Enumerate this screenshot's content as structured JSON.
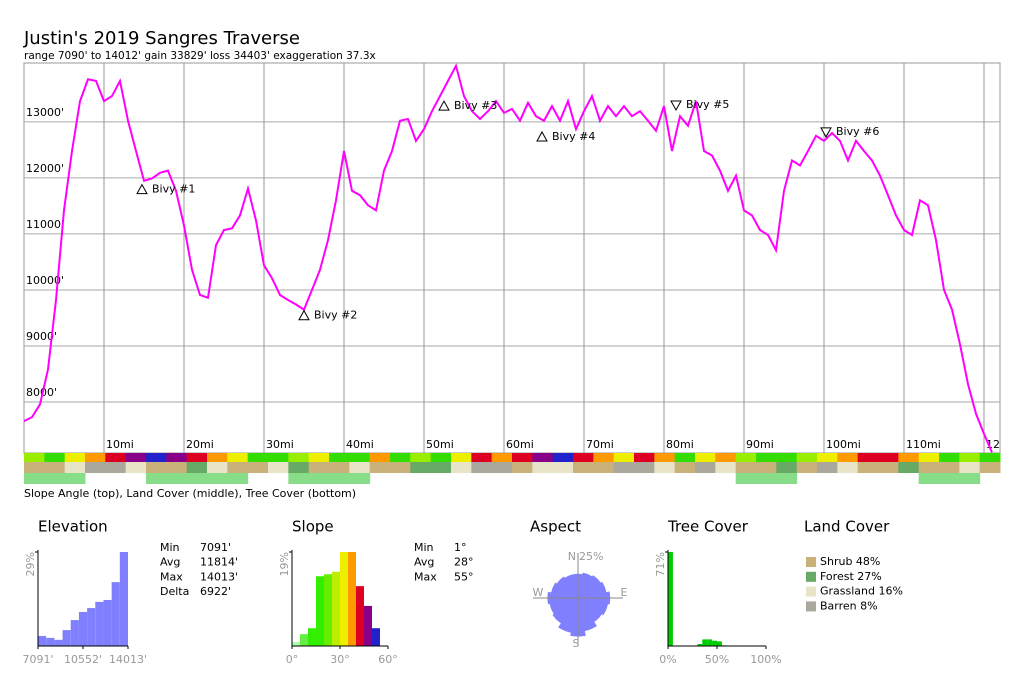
{
  "header": {
    "title": "Justin's 2019 Sangres Traverse",
    "subtitle": "range 7090' to 14012'  gain 33829'  loss 34403'  exaggeration 37.3x"
  },
  "chart_data": [
    {
      "type": "line",
      "color": "#ff00ff",
      "grid": true,
      "xlim": [
        0,
        122
      ],
      "ylim": [
        7090,
        14050
      ],
      "xticks": [
        {
          "value": 10,
          "label": "10mi"
        },
        {
          "value": 20,
          "label": "20mi"
        },
        {
          "value": 30,
          "label": "30mi"
        },
        {
          "value": 40,
          "label": "40mi"
        },
        {
          "value": 50,
          "label": "50mi"
        },
        {
          "value": 60,
          "label": "60mi"
        },
        {
          "value": 70,
          "label": "70mi"
        },
        {
          "value": 80,
          "label": "80mi"
        },
        {
          "value": 90,
          "label": "90mi"
        },
        {
          "value": 100,
          "label": "100mi"
        },
        {
          "value": 110,
          "label": "110mi"
        },
        {
          "value": 120,
          "label": "12"
        }
      ],
      "yticks": [
        {
          "value": 8000,
          "label": "8000'"
        },
        {
          "value": 9000,
          "label": "9000'"
        },
        {
          "value": 10000,
          "label": "10000'"
        },
        {
          "value": 11000,
          "label": "11000'"
        },
        {
          "value": 12000,
          "label": "12000'"
        },
        {
          "value": 13000,
          "label": "13000'"
        }
      ],
      "x": [
        0,
        1,
        2,
        3,
        4,
        5,
        6,
        7,
        8,
        9,
        10,
        11,
        12,
        13,
        14,
        15,
        16,
        17,
        18,
        19,
        20,
        21,
        22,
        23,
        24,
        25,
        26,
        27,
        28,
        29,
        30,
        31,
        32,
        33,
        34,
        35,
        36,
        37,
        38,
        39,
        40,
        41,
        42,
        43,
        44,
        45,
        46,
        47,
        48,
        49,
        50,
        51,
        52,
        53,
        54,
        55,
        56,
        57,
        58,
        59,
        60,
        61,
        62,
        63,
        64,
        65,
        66,
        67,
        68,
        69,
        70,
        71,
        72,
        73,
        74,
        75,
        76,
        77,
        78,
        79,
        80,
        81,
        82,
        83,
        84,
        85,
        86,
        87,
        88,
        89,
        90,
        91,
        92,
        93,
        94,
        95,
        96,
        97,
        98,
        99,
        100,
        101,
        102,
        103,
        104,
        105,
        106,
        107,
        108,
        109,
        110,
        111,
        112,
        113,
        114,
        115,
        116,
        117,
        118,
        119,
        120,
        121
      ],
      "values": [
        7660,
        7730,
        7960,
        8580,
        9820,
        11420,
        12480,
        13370,
        13760,
        13730,
        13370,
        13460,
        13730,
        13020,
        12480,
        11950,
        11990,
        12090,
        12130,
        11770,
        11150,
        10360,
        9910,
        9860,
        10800,
        11070,
        11100,
        11330,
        11810,
        11240,
        10440,
        10210,
        9910,
        9820,
        9740,
        9650,
        10000,
        10360,
        10890,
        11600,
        12480,
        11770,
        11690,
        11510,
        11420,
        12130,
        12480,
        13020,
        13050,
        12660,
        12870,
        13190,
        13460,
        13730,
        14000,
        13460,
        13190,
        13050,
        13190,
        13370,
        13160,
        13230,
        13020,
        13340,
        13100,
        13020,
        13280,
        13020,
        13370,
        12870,
        13190,
        13460,
        13020,
        13280,
        13100,
        13280,
        13100,
        13190,
        13020,
        12840,
        13280,
        12480,
        13100,
        12930,
        13370,
        12480,
        12400,
        12130,
        11770,
        12040,
        11420,
        11330,
        11070,
        10980,
        10710,
        11770,
        12310,
        12220,
        12480,
        12750,
        12660,
        12800,
        12660,
        12310,
        12660,
        12480,
        12310,
        12040,
        11690,
        11330,
        11070,
        10980,
        11600,
        11510,
        10890,
        10000,
        9650,
        9030,
        8320,
        7790,
        7430,
        7100
      ],
      "annotations": [
        {
          "label": "Bivy #1",
          "x": 14.75,
          "y": 11790,
          "marker": "up"
        },
        {
          "label": "Bivy #2",
          "x": 35,
          "y": 9540,
          "marker": "up"
        },
        {
          "label": "Bivy #3",
          "x": 52.5,
          "y": 13280,
          "marker": "up"
        },
        {
          "label": "Bivy #4",
          "x": 64.75,
          "y": 12730,
          "marker": "up"
        },
        {
          "label": "Bivy #5",
          "x": 81.5,
          "y": 13300,
          "marker": "down"
        },
        {
          "label": "Bivy #6",
          "x": 100.25,
          "y": 12820,
          "marker": "down"
        }
      ]
    },
    {
      "type": "band",
      "caption": "Slope Angle (top), Land Cover (middle), Tree Cover (bottom)",
      "rows": [
        {
          "colors": [
            "#99ee00",
            "#33dd00",
            "#eeee00",
            "#ff9900",
            "#dd0022",
            "#880088",
            "#2222cc",
            "#880088",
            "#dd0022",
            "#ff9900",
            "#eeee00",
            "#33dd00",
            "#33dd00",
            "#99ee00",
            "#eeee00",
            "#33dd00",
            "#33dd00",
            "#ff9900",
            "#33dd00",
            "#99ee00",
            "#33dd00",
            "#eeee00",
            "#dd0022",
            "#ff9900",
            "#dd0022",
            "#880088",
            "#2222cc",
            "#dd0022",
            "#ff9900",
            "#eeee00",
            "#dd0022",
            "#ff9900",
            "#33dd00",
            "#eeee00",
            "#ff9900",
            "#99ee00",
            "#33dd00",
            "#33dd00",
            "#99ee00",
            "#eeee00",
            "#ff9900",
            "#dd0022",
            "#dd0022",
            "#ff9900",
            "#eeee00",
            "#33dd00",
            "#99ee00",
            "#33dd00"
          ]
        },
        {
          "colors": [
            "#c8b27a",
            "#c8b27a",
            "#e8e4c8",
            "#aaa79c",
            "#aaa79c",
            "#e8e4c8",
            "#c8b27a",
            "#c8b27a",
            "#66aa66",
            "#e8e4c8",
            "#c8b27a",
            "#c8b27a",
            "#e8e4c8",
            "#66aa66",
            "#c8b27a",
            "#c8b27a",
            "#e8e4c8",
            "#c8b27a",
            "#c8b27a",
            "#66aa66",
            "#66aa66",
            "#e8e4c8",
            "#aaa79c",
            "#aaa79c",
            "#c8b27a",
            "#e8e4c8",
            "#e8e4c8",
            "#c8b27a",
            "#c8b27a",
            "#aaa79c",
            "#aaa79c",
            "#e8e4c8",
            "#c8b27a",
            "#aaa79c",
            "#e8e4c8",
            "#c8b27a",
            "#c8b27a",
            "#66aa66",
            "#c8b27a",
            "#aaa79c",
            "#e8e4c8",
            "#c8b27a",
            "#c8b27a",
            "#66aa66",
            "#c8b27a",
            "#c8b27a",
            "#e8e4c8",
            "#c8b27a"
          ]
        },
        {
          "colors": [
            "#88dd88",
            "#88dd88",
            "#88dd88",
            null,
            null,
            null,
            "#88dd88",
            "#88dd88",
            "#88dd88",
            "#88dd88",
            "#88dd88",
            null,
            null,
            "#88dd88",
            "#88dd88",
            "#88dd88",
            "#88dd88",
            null,
            null,
            null,
            null,
            null,
            null,
            null,
            null,
            null,
            null,
            null,
            null,
            null,
            null,
            null,
            null,
            null,
            null,
            "#88dd88",
            "#88dd88",
            "#88dd88",
            null,
            null,
            null,
            null,
            null,
            null,
            "#88dd88",
            "#88dd88",
            "#88dd88",
            null
          ]
        }
      ]
    },
    {
      "type": "histogram",
      "title": "Elevation",
      "color": "#8080ff",
      "xlim": [
        7091,
        14013
      ],
      "ylim": [
        0,
        29
      ],
      "bins": [
        7091,
        7720,
        8350,
        8979,
        9608,
        10238,
        10867,
        11496,
        12125,
        12755,
        13384,
        14013
      ],
      "values": [
        3.1,
        2.5,
        1.9,
        4.9,
        8.0,
        10.5,
        11.7,
        13.6,
        14.2,
        19.7,
        29
      ],
      "xticks": [
        {
          "value": 7091,
          "label": "7091'"
        },
        {
          "value": 10552,
          "label": "10552'"
        },
        {
          "value": 14013,
          "label": "14013'"
        }
      ],
      "yticks": [
        {
          "value": 29,
          "label": "29%"
        }
      ],
      "stats": [
        [
          "Min",
          "7091'"
        ],
        [
          "Avg",
          "11814'"
        ],
        [
          "Max",
          "14013'"
        ],
        [
          "Delta",
          "6922'"
        ]
      ]
    },
    {
      "type": "histogram",
      "title": "Slope",
      "colors": [
        "#aaffaa",
        "#66ee44",
        "#33ee00",
        "#33ee00",
        "#66ee00",
        "#bbee00",
        "#eeee00",
        "#ff9900",
        "#dd0022",
        "#880088",
        "#2222cc"
      ],
      "xlim": [
        0,
        60
      ],
      "ylim": [
        0,
        19
      ],
      "bins": [
        0,
        5,
        10,
        15,
        20,
        25,
        30,
        35,
        40,
        45,
        50,
        55
      ],
      "values": [
        0.8,
        2.4,
        3.6,
        14.1,
        14.5,
        15,
        19,
        19,
        12.1,
        8.1,
        3.6
      ],
      "xticks": [
        {
          "value": 0,
          "label": "0°"
        },
        {
          "value": 30,
          "label": "30°"
        },
        {
          "value": 60,
          "label": "60°"
        }
      ],
      "yticks": [
        {
          "value": 19,
          "label": "19%"
        }
      ],
      "stats": [
        [
          "Min",
          "1°"
        ],
        [
          "Avg",
          "28°"
        ],
        [
          "Max",
          "55°"
        ]
      ]
    },
    {
      "type": "rose",
      "title": "Aspect",
      "color": "#8080ff",
      "rlim": [
        0,
        25
      ],
      "rlabel": "25%",
      "directions": {
        "N": "N",
        "E": "E",
        "S": "S",
        "W": "W"
      },
      "values": [
        15,
        16,
        17,
        18,
        20,
        19,
        18,
        21,
        24,
        22,
        19,
        18,
        19,
        17,
        16,
        15
      ]
    },
    {
      "type": "histogram",
      "title": "Tree Cover",
      "color": "#00cc00",
      "xlim": [
        0,
        100
      ],
      "ylim": [
        0,
        71
      ],
      "bins": [
        0,
        5,
        10,
        15,
        20,
        25,
        30,
        35,
        40,
        45,
        50,
        55,
        60,
        65,
        70,
        75,
        80,
        85,
        90,
        95,
        100
      ],
      "values": [
        71,
        0,
        0,
        0,
        0,
        0,
        1.5,
        5,
        5,
        4,
        3.5,
        0.5,
        0,
        0,
        0,
        0,
        0,
        0,
        0,
        0
      ],
      "xticks": [
        {
          "value": 0,
          "label": "0%"
        },
        {
          "value": 50,
          "label": "50%"
        },
        {
          "value": 100,
          "label": "100%"
        }
      ],
      "yticks": [
        {
          "value": 71,
          "label": "71%"
        }
      ]
    },
    {
      "type": "legend",
      "title": "Land Cover",
      "labels": [
        "Shrub 48%",
        "Forest 27%",
        "Grassland 16%",
        "Barren 8%"
      ],
      "values": [
        48,
        27,
        16,
        8
      ],
      "colors": [
        "#c8b27a",
        "#66aa66",
        "#e8e4c8",
        "#aaa79c"
      ]
    }
  ]
}
